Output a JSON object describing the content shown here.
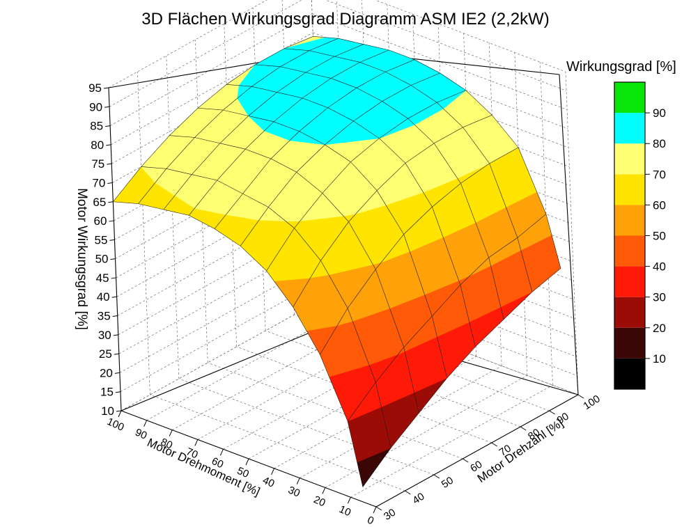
{
  "chart_data": {
    "type": "surface3d",
    "title": "3D Flächen Wirkungsgrad Diagramm ASM IE2 (2,2kW)",
    "zlabel": "Motor Wirkungsgrad [%]",
    "xlabel": "Motor Drehmoment [%]",
    "ylabel": "Motor Drehzahl [%]",
    "colorbar_label": "Wirkungsgrad [%]",
    "grid": true,
    "colorbar_placement": "right",
    "zlim": [
      10,
      95
    ],
    "xlim": [
      0,
      100
    ],
    "ylim": [
      30,
      100
    ],
    "z_ticks": [
      "95",
      "90",
      "85",
      "80",
      "75",
      "70",
      "65",
      "60",
      "55",
      "50",
      "45",
      "40",
      "35",
      "30",
      "25",
      "20",
      "15",
      "10"
    ],
    "x_ticks": [
      "100",
      "90",
      "80",
      "70",
      "60",
      "50",
      "40",
      "30",
      "20",
      "10",
      "0"
    ],
    "y_ticks": [
      "30",
      "40",
      "50",
      "60",
      "70",
      "80",
      "90",
      "100"
    ],
    "colorbar": {
      "ticks": [
        "90",
        "80",
        "70",
        "60",
        "50",
        "40",
        "30",
        "20",
        "10"
      ],
      "levels": [
        {
          "from": 0,
          "to": 10,
          "color": "#000000"
        },
        {
          "from": 10,
          "to": 20,
          "color": "#3a0606"
        },
        {
          "from": 20,
          "to": 30,
          "color": "#9c0c06"
        },
        {
          "from": 30,
          "to": 40,
          "color": "#ff1a08"
        },
        {
          "from": 40,
          "to": 50,
          "color": "#ff5a08"
        },
        {
          "from": 50,
          "to": 60,
          "color": "#ffa108"
        },
        {
          "from": 60,
          "to": 70,
          "color": "#ffe400"
        },
        {
          "from": 70,
          "to": 80,
          "color": "#ffff73"
        },
        {
          "from": 80,
          "to": 90,
          "color": "#00ffff"
        },
        {
          "from": 90,
          "to": 100,
          "color": "#0ae60a"
        }
      ]
    },
    "surface": {
      "torque": [
        100,
        90,
        80,
        70,
        60,
        50,
        40,
        30,
        20,
        10,
        5
      ],
      "speed": [
        30,
        40,
        50,
        60,
        70,
        80,
        90,
        100
      ],
      "efficiency": [
        [
          65,
          70,
          74,
          77,
          79,
          80,
          80,
          79
        ],
        [
          67,
          72,
          76,
          79,
          81,
          82,
          82,
          81
        ],
        [
          68,
          73,
          77,
          80,
          82,
          83,
          83,
          82
        ],
        [
          69,
          74,
          78,
          81,
          83,
          84,
          84,
          83
        ],
        [
          68,
          73,
          78,
          81,
          83,
          84,
          84,
          83
        ],
        [
          66,
          72,
          77,
          80,
          82,
          83,
          83,
          82
        ],
        [
          62,
          69,
          74,
          78,
          80,
          81,
          81,
          80
        ],
        [
          55,
          63,
          69,
          73,
          76,
          77,
          77,
          76
        ],
        [
          45,
          53,
          59,
          64,
          67,
          69,
          70,
          70
        ],
        [
          30,
          36,
          41,
          45,
          49,
          52,
          53,
          55
        ],
        [
          14,
          20,
          25,
          30,
          34,
          37,
          40,
          42
        ]
      ]
    }
  }
}
